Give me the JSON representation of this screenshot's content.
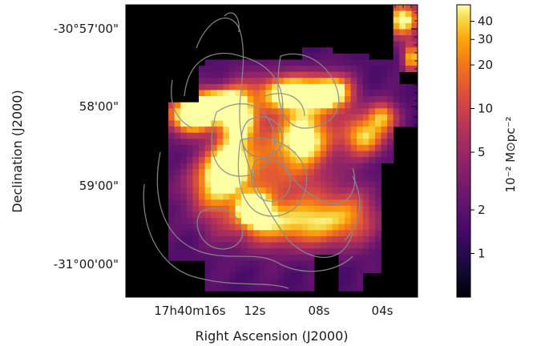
{
  "chart_data": {
    "type": "heatmap",
    "xlabel": "Right Ascension (J2000)",
    "ylabel": "Declination (J2000)",
    "x_ticks": [
      "17h40m16s",
      "12s",
      "08s",
      "04s"
    ],
    "y_ticks": [
      "-30°57'00\"",
      "58'00\"",
      "59'00\"",
      "-31°00'00\""
    ],
    "colorbar": {
      "label": "10^{-2} M_⊙ pc^{-2}",
      "label_display": "10⁻² M⊙pc⁻²",
      "scale": "log",
      "range": [
        0.5,
        52
      ],
      "ticks": [
        1,
        2,
        5,
        10,
        20,
        30,
        40
      ],
      "tick_labels": [
        "1",
        "2",
        "5",
        "10",
        "20",
        "30",
        "40"
      ],
      "colormap": "inferno"
    },
    "contours": {
      "color": "#8c8c8c",
      "levels_shown": 6
    },
    "background": "#000000"
  }
}
